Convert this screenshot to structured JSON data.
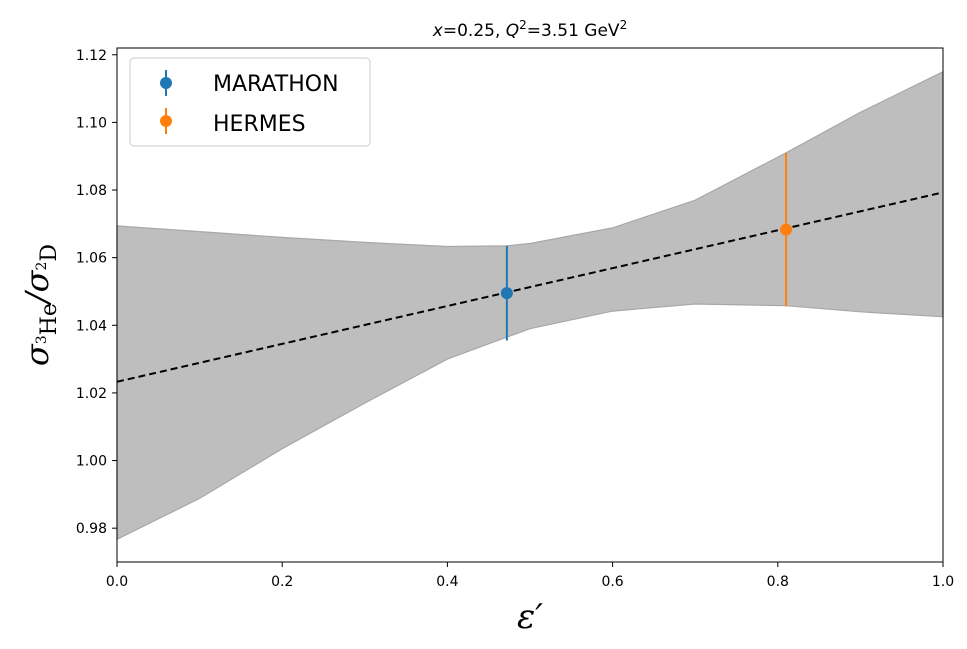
{
  "chart_data": {
    "type": "scatter",
    "title": "x=0.25, Q²=3.51 GeV²",
    "title_parts": {
      "x_var": "x",
      "x_eq": "=0.25, ",
      "q_var": "Q",
      "q_sup": "2",
      "q_eq": "=3.51 GeV",
      "unit_sup": "2"
    },
    "xlabel": "ε′",
    "ylabel": {
      "main": "σ",
      "sub1_sup": "3",
      "sub1": "He",
      "slash": "/σ",
      "sub2_sup": "2",
      "sub2": "D"
    },
    "xlim": [
      0.0,
      1.0
    ],
    "ylim": [
      0.97,
      1.122
    ],
    "xticks": [
      "0.0",
      "0.2",
      "0.4",
      "0.6",
      "0.8",
      "1.0"
    ],
    "yticks": [
      "0.98",
      "1.00",
      "1.02",
      "1.04",
      "1.06",
      "1.08",
      "1.10",
      "1.12"
    ],
    "grid": false,
    "legend_position": "top-left",
    "series": [
      {
        "name": "MARATHON",
        "color": "#1f77b4",
        "x": [
          0.472
        ],
        "y": [
          1.0495
        ],
        "yerr": [
          0.014
        ]
      },
      {
        "name": "HERMES",
        "color": "#ff7f0e",
        "x": [
          0.81
        ],
        "y": [
          1.0683
        ],
        "yerr": [
          0.0227
        ]
      }
    ],
    "fit_line": {
      "style": "dashed",
      "color": "#000000",
      "x": [
        0.0,
        1.0
      ],
      "y": [
        1.0233,
        1.0793
      ]
    },
    "error_band": {
      "color": "#bebebe",
      "x": [
        0.0,
        0.1,
        0.2,
        0.3,
        0.4,
        0.472,
        0.5,
        0.6,
        0.7,
        0.81,
        0.9,
        1.0
      ],
      "upper": [
        1.0694,
        1.0677,
        1.066,
        1.0645,
        1.0633,
        1.0635,
        1.0642,
        1.0688,
        1.077,
        1.091,
        1.103,
        1.115
      ],
      "lower": [
        0.9767,
        0.9888,
        1.0035,
        1.017,
        1.03,
        1.0365,
        1.039,
        1.0442,
        1.0463,
        1.0458,
        1.044,
        1.0425
      ]
    }
  }
}
